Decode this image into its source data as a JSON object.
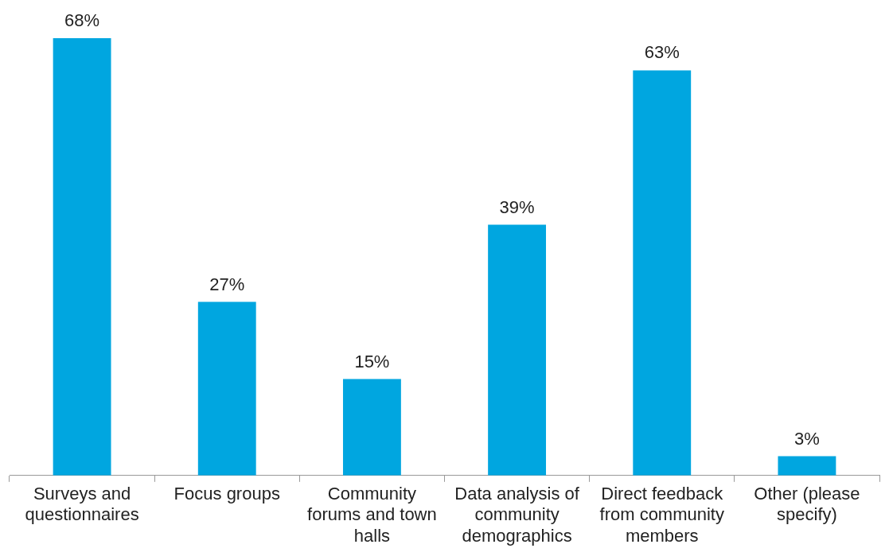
{
  "chart_data": {
    "type": "bar",
    "categories": [
      "Surveys and questionnaires",
      "Focus groups",
      "Community forums and town halls",
      "Data analysis of community demographics",
      "Direct feedback from community members",
      "Other (please specify)"
    ],
    "values": [
      68,
      27,
      15,
      39,
      63,
      3
    ],
    "value_labels": [
      "68%",
      "27%",
      "15%",
      "39%",
      "63%",
      "3%"
    ],
    "color": "#00a6e0",
    "grid": false,
    "legend": false
  }
}
